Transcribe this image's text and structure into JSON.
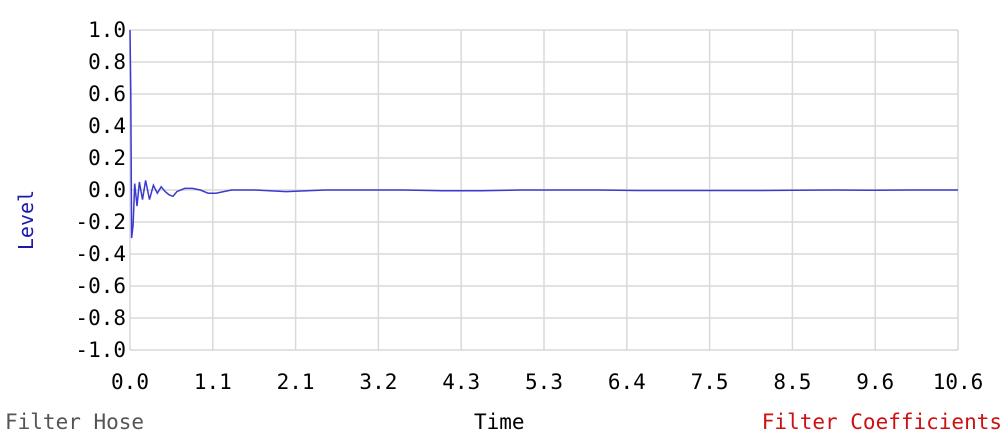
{
  "colors": {
    "line": "#3a3ad0",
    "grid": "#d9d9d9",
    "ylabel": "#1a1aaa",
    "footer_left": "#555555",
    "footer_right": "#cc1111"
  },
  "footer": {
    "left": "Filter Hose",
    "center": "Time",
    "right": "Filter Coefficients"
  },
  "chart_data": {
    "type": "line",
    "title": "",
    "xlabel": "Time",
    "ylabel": "Level",
    "xlim": [
      0,
      10.6
    ],
    "ylim": [
      -1.0,
      1.0
    ],
    "grid": true,
    "x_ticks": [
      "0.0",
      "1.1",
      "2.1",
      "3.2",
      "4.3",
      "5.3",
      "6.4",
      "7.5",
      "8.5",
      "9.6",
      "10.6"
    ],
    "y_ticks": [
      "1.0",
      "0.8",
      "0.6",
      "0.4",
      "0.2",
      "0.0",
      "-0.2",
      "-0.4",
      "-0.6",
      "-0.8",
      "-1.0"
    ],
    "series": [
      {
        "x": [
          0.0,
          0.01,
          0.02,
          0.04,
          0.06,
          0.09,
          0.12,
          0.16,
          0.2,
          0.25,
          0.3,
          0.35,
          0.4,
          0.45,
          0.5,
          0.55,
          0.6,
          0.7,
          0.8,
          0.9,
          1.0,
          1.1,
          1.3,
          1.6,
          2.0,
          2.5,
          3.0,
          3.5,
          4.0,
          4.5,
          5.0,
          5.5,
          6.0,
          6.5,
          7.0,
          7.5,
          8.0,
          8.5,
          9.0,
          9.5,
          10.0,
          10.6
        ],
        "y": [
          1.0,
          0.6,
          -0.3,
          -0.22,
          0.04,
          -0.1,
          0.05,
          -0.06,
          0.06,
          -0.06,
          0.03,
          -0.02,
          0.02,
          -0.01,
          -0.03,
          -0.04,
          -0.01,
          0.01,
          0.01,
          0.0,
          -0.02,
          -0.02,
          0.0,
          0.0,
          -0.01,
          0.0,
          0.0,
          0.0,
          -0.005,
          -0.005,
          0.0,
          0.0,
          0.0,
          -0.003,
          -0.003,
          -0.003,
          -0.003,
          -0.002,
          0.0,
          -0.002,
          0.0,
          0.0
        ]
      }
    ]
  }
}
